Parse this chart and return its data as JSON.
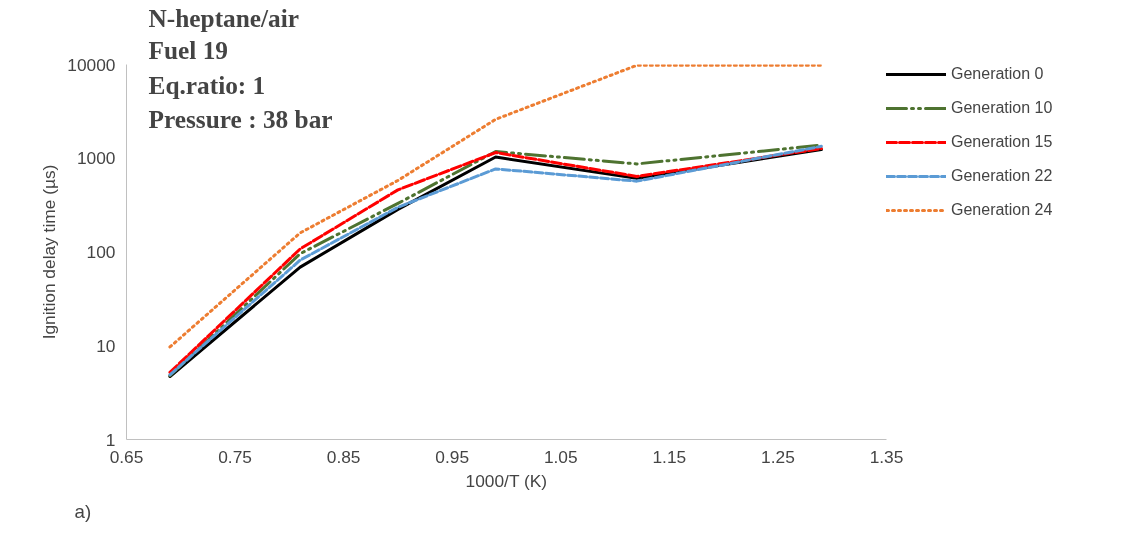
{
  "chart_data": {
    "type": "line",
    "title": "N-heptane/air",
    "annotations": [
      "Fuel 19",
      "Eq.ratio: 1",
      "Pressure : 38 bar",
      "a)"
    ],
    "xlabel": "1000/T (K)",
    "ylabel": "Ignition delay time (µs)",
    "x": [
      0.69,
      0.81,
      0.9,
      0.99,
      1.12,
      1.29
    ],
    "series": [
      {
        "name": "Generation 0",
        "color": "#000000",
        "line_style": "solid",
        "values": [
          4.7,
          69,
          285,
          1030,
          610,
          1240
        ]
      },
      {
        "name": "Generation 10",
        "color": "#4e7330",
        "line_style": "dashdot",
        "values": [
          4.8,
          96,
          330,
          1180,
          870,
          1380
        ]
      },
      {
        "name": "Generation 15",
        "color": "#ff0000",
        "line_style": "dashed",
        "values": [
          5.2,
          108,
          460,
          1150,
          640,
          1270
        ]
      },
      {
        "name": "Generation 22",
        "color": "#5b9bd5",
        "line_style": "dashed",
        "values": [
          4.9,
          82,
          300,
          770,
          570,
          1340
        ]
      },
      {
        "name": "Generation 24",
        "color": "#ed7d31",
        "line_style": "dotted",
        "values": [
          9.7,
          160,
          580,
          2600,
          9800,
          9800
        ]
      }
    ],
    "log": "y",
    "xlim": [
      0.65,
      1.35
    ],
    "ylim": [
      1,
      10000
    ],
    "xticks": [
      0.65,
      0.75,
      0.85,
      0.95,
      1.05,
      1.15,
      1.25,
      1.35
    ],
    "yticks": [
      1,
      10,
      100,
      1000,
      10000
    ],
    "grid": false,
    "legend": "right",
    "marker": "none"
  }
}
